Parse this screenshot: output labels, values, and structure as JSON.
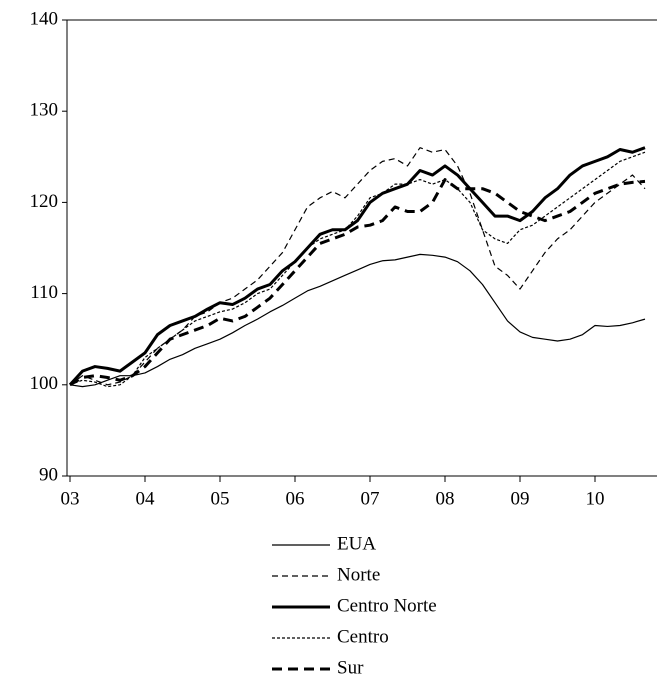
{
  "chart_data": {
    "type": "line",
    "categories": [
      "03",
      null,
      null,
      null,
      null,
      null,
      "04",
      null,
      null,
      null,
      null,
      null,
      "05",
      null,
      null,
      null,
      null,
      null,
      "06",
      null,
      null,
      null,
      null,
      null,
      "07",
      null,
      null,
      null,
      null,
      null,
      "08",
      null,
      null,
      null,
      null,
      null,
      "09",
      null,
      null,
      null,
      null,
      null,
      "10",
      null,
      null,
      null,
      null
    ],
    "series": [
      {
        "name": "EUA",
        "color": "#000000",
        "values": [
          100,
          99.8,
          100,
          100.5,
          101,
          101,
          101.3,
          102,
          102.8,
          103.3,
          104,
          104.5,
          105,
          105.7,
          106.5,
          107.2,
          108,
          108.7,
          109.5,
          110.3,
          110.8,
          111.4,
          112,
          112.6,
          113.2,
          113.6,
          113.7,
          114,
          114.3,
          114.2,
          114,
          113.5,
          112.5,
          111,
          109,
          107,
          105.8,
          105.2,
          105,
          104.8,
          105,
          105.5,
          106.5,
          106.4,
          106.5,
          106.8,
          107.2
        ]
      },
      {
        "name": "Norte",
        "color": "#000000",
        "values": [
          100,
          101,
          100.5,
          100,
          100.3,
          101,
          102.5,
          104,
          105,
          106,
          107.5,
          108,
          109,
          109.5,
          110.5,
          111.5,
          113,
          114.5,
          117,
          119.5,
          120.5,
          121.2,
          120.5,
          122,
          123.5,
          124.5,
          124.8,
          124,
          126,
          125.5,
          125.8,
          124,
          121,
          117,
          113,
          112,
          110.5,
          112.5,
          114.5,
          116,
          117,
          118.5,
          120,
          121,
          122,
          123,
          121.5
        ]
      },
      {
        "name": "Centro Norte",
        "color": "#000000",
        "values": [
          100,
          101.5,
          102,
          101.8,
          101.5,
          102.5,
          103.5,
          105.5,
          106.5,
          107,
          107.5,
          108.3,
          109,
          108.8,
          109.5,
          110.5,
          111,
          112.5,
          113.5,
          115,
          116.5,
          117,
          117,
          118,
          120,
          121,
          121.5,
          122,
          123.5,
          123,
          124,
          123,
          121.5,
          120,
          118.5,
          118.5,
          118,
          119,
          120.5,
          121.5,
          123,
          124,
          124.5,
          125,
          125.8,
          125.5,
          126
        ]
      },
      {
        "name": "Centro",
        "color": "#000000",
        "values": [
          100,
          100.5,
          100.3,
          99.8,
          100,
          101,
          103,
          104,
          105,
          106,
          107,
          107.5,
          108,
          108.3,
          109,
          110,
          110.5,
          112,
          113.5,
          115,
          116,
          116.5,
          117,
          118.5,
          120.5,
          121,
          122,
          122,
          122.5,
          122,
          122.5,
          121.5,
          120,
          117,
          116,
          115.5,
          117,
          117.5,
          118.5,
          119.5,
          120.5,
          121.5,
          122.5,
          123.5,
          124.5,
          125,
          125.5
        ]
      },
      {
        "name": "Sur",
        "color": "#000000",
        "values": [
          100,
          100.8,
          101,
          100.8,
          100.5,
          101,
          102,
          103.5,
          105,
          105.5,
          106,
          106.5,
          107.3,
          107,
          107.5,
          108.5,
          109.5,
          111,
          112.5,
          114,
          115.5,
          116,
          116.5,
          117.3,
          117.5,
          118,
          119.5,
          119,
          119,
          120,
          122.5,
          121.5,
          121.5,
          121.5,
          121,
          120,
          119,
          118.5,
          118,
          118.5,
          119,
          120,
          121,
          121.5,
          122,
          122.2,
          122.3
        ]
      }
    ],
    "ylim": [
      90,
      140
    ],
    "yticks": [
      90,
      100,
      110,
      120,
      130,
      140
    ]
  }
}
